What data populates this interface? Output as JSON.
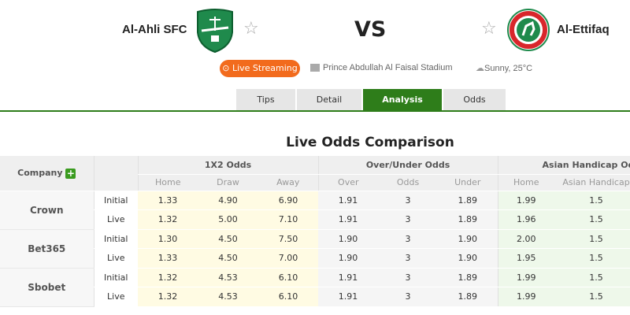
{
  "match": {
    "home_team": "Al-Ahli SFC",
    "away_team": "Al-Ettifaq",
    "vs": "VS",
    "live_label": "Live Streaming",
    "stadium": "Prince Abdullah Al Faisal Stadium",
    "weather": "Sunny, 25°C"
  },
  "tabs": [
    "Tips",
    "Detail",
    "Analysis",
    "Odds"
  ],
  "active_tab": "Analysis",
  "section_title": "Live Odds Comparison",
  "table": {
    "company_header": "Company",
    "groups": [
      "1X2 Odds",
      "Over/Under Odds",
      "Asian Handicap Odds"
    ],
    "subheaders": [
      "Home",
      "Draw",
      "Away",
      "Over",
      "Odds",
      "Under",
      "Home",
      "Asian Handicap"
    ],
    "companies": [
      {
        "name": "Crown",
        "rows": [
          {
            "type": "Initial",
            "values": [
              "1.33",
              "4.90",
              "6.90",
              "1.91",
              "3",
              "1.89",
              "1.99",
              "1.5"
            ]
          },
          {
            "type": "Live",
            "values": [
              "1.32",
              "5.00",
              "7.10",
              "1.91",
              "3",
              "1.89",
              "1.96",
              "1.5"
            ]
          }
        ]
      },
      {
        "name": "Bet365",
        "rows": [
          {
            "type": "Initial",
            "values": [
              "1.30",
              "4.50",
              "7.50",
              "1.90",
              "3",
              "1.90",
              "2.00",
              "1.5"
            ]
          },
          {
            "type": "Live",
            "values": [
              "1.33",
              "4.50",
              "7.00",
              "1.90",
              "3",
              "1.90",
              "1.95",
              "1.5"
            ]
          }
        ]
      },
      {
        "name": "Sbobet",
        "rows": [
          {
            "type": "Initial",
            "values": [
              "1.32",
              "4.53",
              "6.10",
              "1.91",
              "3",
              "1.89",
              "1.99",
              "1.5"
            ]
          },
          {
            "type": "Live",
            "values": [
              "1.32",
              "4.53",
              "6.10",
              "1.91",
              "3",
              "1.89",
              "1.99",
              "1.5"
            ]
          }
        ]
      }
    ]
  },
  "colors": {
    "accent": "#2e7d1a",
    "live": "#f26b1d"
  }
}
